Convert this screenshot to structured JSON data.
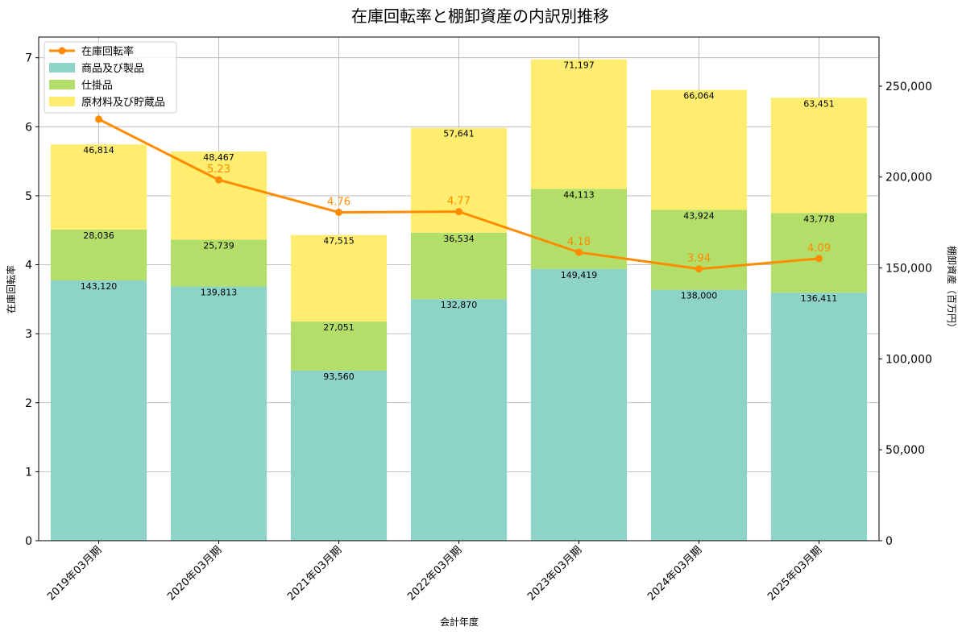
{
  "chart_data": {
    "type": "bar",
    "title": "在庫回転率と棚卸資産の内訳別推移",
    "xlabel": "会計年度",
    "ylabel_left": "在庫回転率",
    "ylabel_right": "棚卸資産（百万円）",
    "ylim_left": [
      0,
      7.3
    ],
    "ylim_right": [
      0,
      277000
    ],
    "yticks_left": [
      "0",
      "1",
      "2",
      "3",
      "4",
      "5",
      "6",
      "7"
    ],
    "yticks_right": [
      "0",
      "50,000",
      "100,000",
      "150,000",
      "200,000",
      "250,000"
    ],
    "grid": true,
    "legend_position": "top-left",
    "categories": [
      "2019年03月期",
      "2020年03月期",
      "2021年03月期",
      "2022年03月期",
      "2023年03月期",
      "2024年03月期",
      "2025年03月期"
    ],
    "series": [
      {
        "name": "商品及び製品",
        "kind": "bar",
        "axis": "right",
        "color": "#8dd3c7",
        "values": [
          143120,
          139813,
          93560,
          132870,
          149419,
          138000,
          136411
        ],
        "labels": [
          "143,120",
          "139,813",
          "93,560",
          "132,870",
          "149,419",
          "138,000",
          "136,411"
        ]
      },
      {
        "name": "仕掛品",
        "kind": "bar",
        "axis": "right",
        "color": "#b3de69",
        "values": [
          28036,
          25739,
          27051,
          36534,
          44113,
          43924,
          43778
        ],
        "labels": [
          "28,036",
          "25,739",
          "27,051",
          "36,534",
          "44,113",
          "43,924",
          "43,778"
        ]
      },
      {
        "name": "原材料及び貯蔵品",
        "kind": "bar",
        "axis": "right",
        "color": "#ffed6f",
        "values": [
          46814,
          48467,
          47515,
          57641,
          71197,
          66064,
          63451
        ],
        "labels": [
          "46,814",
          "48,467",
          "47,515",
          "57,641",
          "71,197",
          "66,064",
          "63,451"
        ]
      },
      {
        "name": "在庫回転率",
        "kind": "line",
        "axis": "left",
        "color": "#ff8c00",
        "values": [
          6.11,
          5.23,
          4.76,
          4.77,
          4.18,
          3.94,
          4.09
        ],
        "labels": [
          "",
          "5.23",
          "4.76",
          "4.77",
          "4.18",
          "3.94",
          "4.09"
        ]
      }
    ]
  }
}
